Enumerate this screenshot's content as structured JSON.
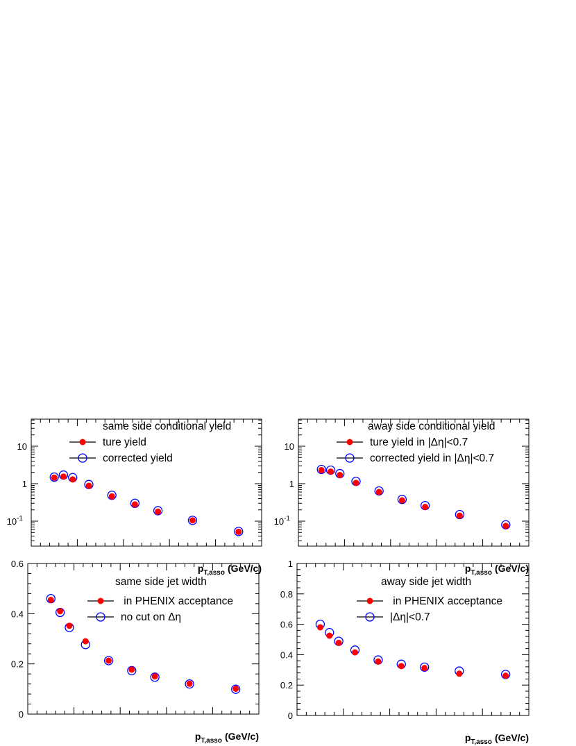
{
  "chart_data": [
    {
      "type": "scatter",
      "panel": "top-left",
      "title": "same side conditional yield",
      "xlabel_main": "p",
      "xlabel_sub": "T,asso",
      "xlabel_unit": "(GeV/c)",
      "ylabel": "",
      "xlim": [
        0,
        5
      ],
      "ylim": [
        0.025,
        55
      ],
      "yscale": "log",
      "xticks": [
        0,
        1,
        2,
        3,
        4,
        5
      ],
      "yticks": [
        {
          "value": 10,
          "label": "10"
        },
        {
          "value": 1,
          "label": "1"
        },
        {
          "value": 0.1,
          "label": "10",
          "sup": "-1"
        }
      ],
      "legend_position": "top-right",
      "series": [
        {
          "name": "ture yield",
          "marker": "filled-red",
          "x": [
            0.5,
            0.7,
            0.9,
            1.25,
            1.75,
            2.25,
            2.75,
            3.5,
            4.5
          ],
          "y": [
            1.45,
            1.55,
            1.3,
            0.88,
            0.46,
            0.28,
            0.18,
            0.105,
            0.052
          ]
        },
        {
          "name": "corrected yield",
          "marker": "open-blue",
          "x": [
            0.5,
            0.7,
            0.9,
            1.25,
            1.75,
            2.25,
            2.75,
            3.5,
            4.5
          ],
          "y": [
            1.5,
            1.7,
            1.45,
            0.95,
            0.49,
            0.3,
            0.19,
            0.105,
            0.053
          ]
        }
      ]
    },
    {
      "type": "scatter",
      "panel": "top-right",
      "title": "away side conditional yield",
      "xlabel_main": "p",
      "xlabel_sub": "T,asso",
      "xlabel_unit": "(GeV/c)",
      "ylabel": "",
      "xlim": [
        0,
        5
      ],
      "ylim": [
        0.025,
        55
      ],
      "yscale": "log",
      "xticks": [
        0,
        1,
        2,
        3,
        4,
        5
      ],
      "yticks": [
        {
          "value": 10,
          "label": "10"
        },
        {
          "value": 1,
          "label": "1"
        },
        {
          "value": 0.1,
          "label": "10",
          "sup": "-1"
        }
      ],
      "legend_position": "top-right",
      "series": [
        {
          "name": "ture yield in |Δη|<0.7",
          "marker": "filled-red",
          "x": [
            0.5,
            0.7,
            0.9,
            1.25,
            1.75,
            2.25,
            2.75,
            3.5,
            4.5
          ],
          "y": [
            2.3,
            2.1,
            1.7,
            1.05,
            0.6,
            0.36,
            0.24,
            0.14,
            0.075
          ]
        },
        {
          "name": "corrected yield in |Δη|<0.7",
          "marker": "open-blue",
          "x": [
            0.5,
            0.7,
            0.9,
            1.25,
            1.75,
            2.25,
            2.75,
            3.5,
            4.5
          ],
          "y": [
            2.4,
            2.3,
            1.85,
            1.15,
            0.64,
            0.38,
            0.26,
            0.15,
            0.08
          ]
        }
      ]
    },
    {
      "type": "scatter",
      "panel": "bottom-left",
      "title": "same side jet width",
      "xlabel_main": "p",
      "xlabel_sub": "T,asso",
      "xlabel_unit": "(GeV/c)",
      "ylabel": "",
      "xlim": [
        0,
        5
      ],
      "ylim": [
        0,
        0.6
      ],
      "yscale": "linear",
      "xticks": [
        0,
        1,
        2,
        3,
        4,
        5
      ],
      "yticks": [
        {
          "value": 0,
          "label": "0"
        },
        {
          "value": 0.2,
          "label": "0.2"
        },
        {
          "value": 0.4,
          "label": "0.4"
        },
        {
          "value": 0.6,
          "label": "0.6"
        }
      ],
      "legend_position": "top-right",
      "series": [
        {
          "name": " in PHENIX acceptance",
          "marker": "filled-red",
          "x": [
            0.5,
            0.7,
            0.9,
            1.25,
            1.75,
            2.25,
            2.75,
            3.5,
            4.5
          ],
          "y": [
            0.455,
            0.41,
            0.352,
            0.29,
            0.213,
            0.177,
            0.15,
            0.121,
            0.101
          ],
          "yerr": [
            0.012,
            0,
            0,
            0,
            0,
            0,
            0,
            0,
            0
          ]
        },
        {
          "name": "no cut on Δη",
          "marker": "open-blue",
          "x": [
            0.5,
            0.7,
            0.9,
            1.25,
            1.75,
            2.25,
            2.75,
            3.5,
            4.5
          ],
          "y": [
            0.46,
            0.405,
            0.345,
            0.277,
            0.213,
            0.173,
            0.147,
            0.12,
            0.099
          ]
        }
      ]
    },
    {
      "type": "scatter",
      "panel": "bottom-right",
      "title": "away side jet width",
      "xlabel_main": "p",
      "xlabel_sub": "T,asso",
      "xlabel_unit": "(GeV/c)",
      "ylabel": "",
      "xlim": [
        0,
        5
      ],
      "ylim": [
        0,
        1
      ],
      "yscale": "linear",
      "xticks": [
        0,
        1,
        2,
        3,
        4,
        5
      ],
      "yticks": [
        {
          "value": 0,
          "label": "0"
        },
        {
          "value": 0.2,
          "label": "0.2"
        },
        {
          "value": 0.4,
          "label": "0.4"
        },
        {
          "value": 0.6,
          "label": "0.6"
        },
        {
          "value": 0.8,
          "label": "0.8"
        },
        {
          "value": 1,
          "label": "1"
        }
      ],
      "legend_position": "top-right",
      "series": [
        {
          "name": " in PHENIX acceptance",
          "marker": "filled-red",
          "x": [
            0.5,
            0.7,
            0.9,
            1.25,
            1.75,
            2.25,
            2.75,
            3.5,
            4.5
          ],
          "y": [
            0.58,
            0.525,
            0.478,
            0.415,
            0.355,
            0.325,
            0.312,
            0.275,
            0.262
          ]
        },
        {
          "name": "|Δη|<0.7",
          "marker": "open-blue",
          "x": [
            0.5,
            0.7,
            0.9,
            1.25,
            1.75,
            2.25,
            2.75,
            3.5,
            4.5
          ],
          "y": [
            0.6,
            0.545,
            0.488,
            0.43,
            0.365,
            0.337,
            0.318,
            0.292,
            0.27
          ]
        }
      ]
    }
  ]
}
